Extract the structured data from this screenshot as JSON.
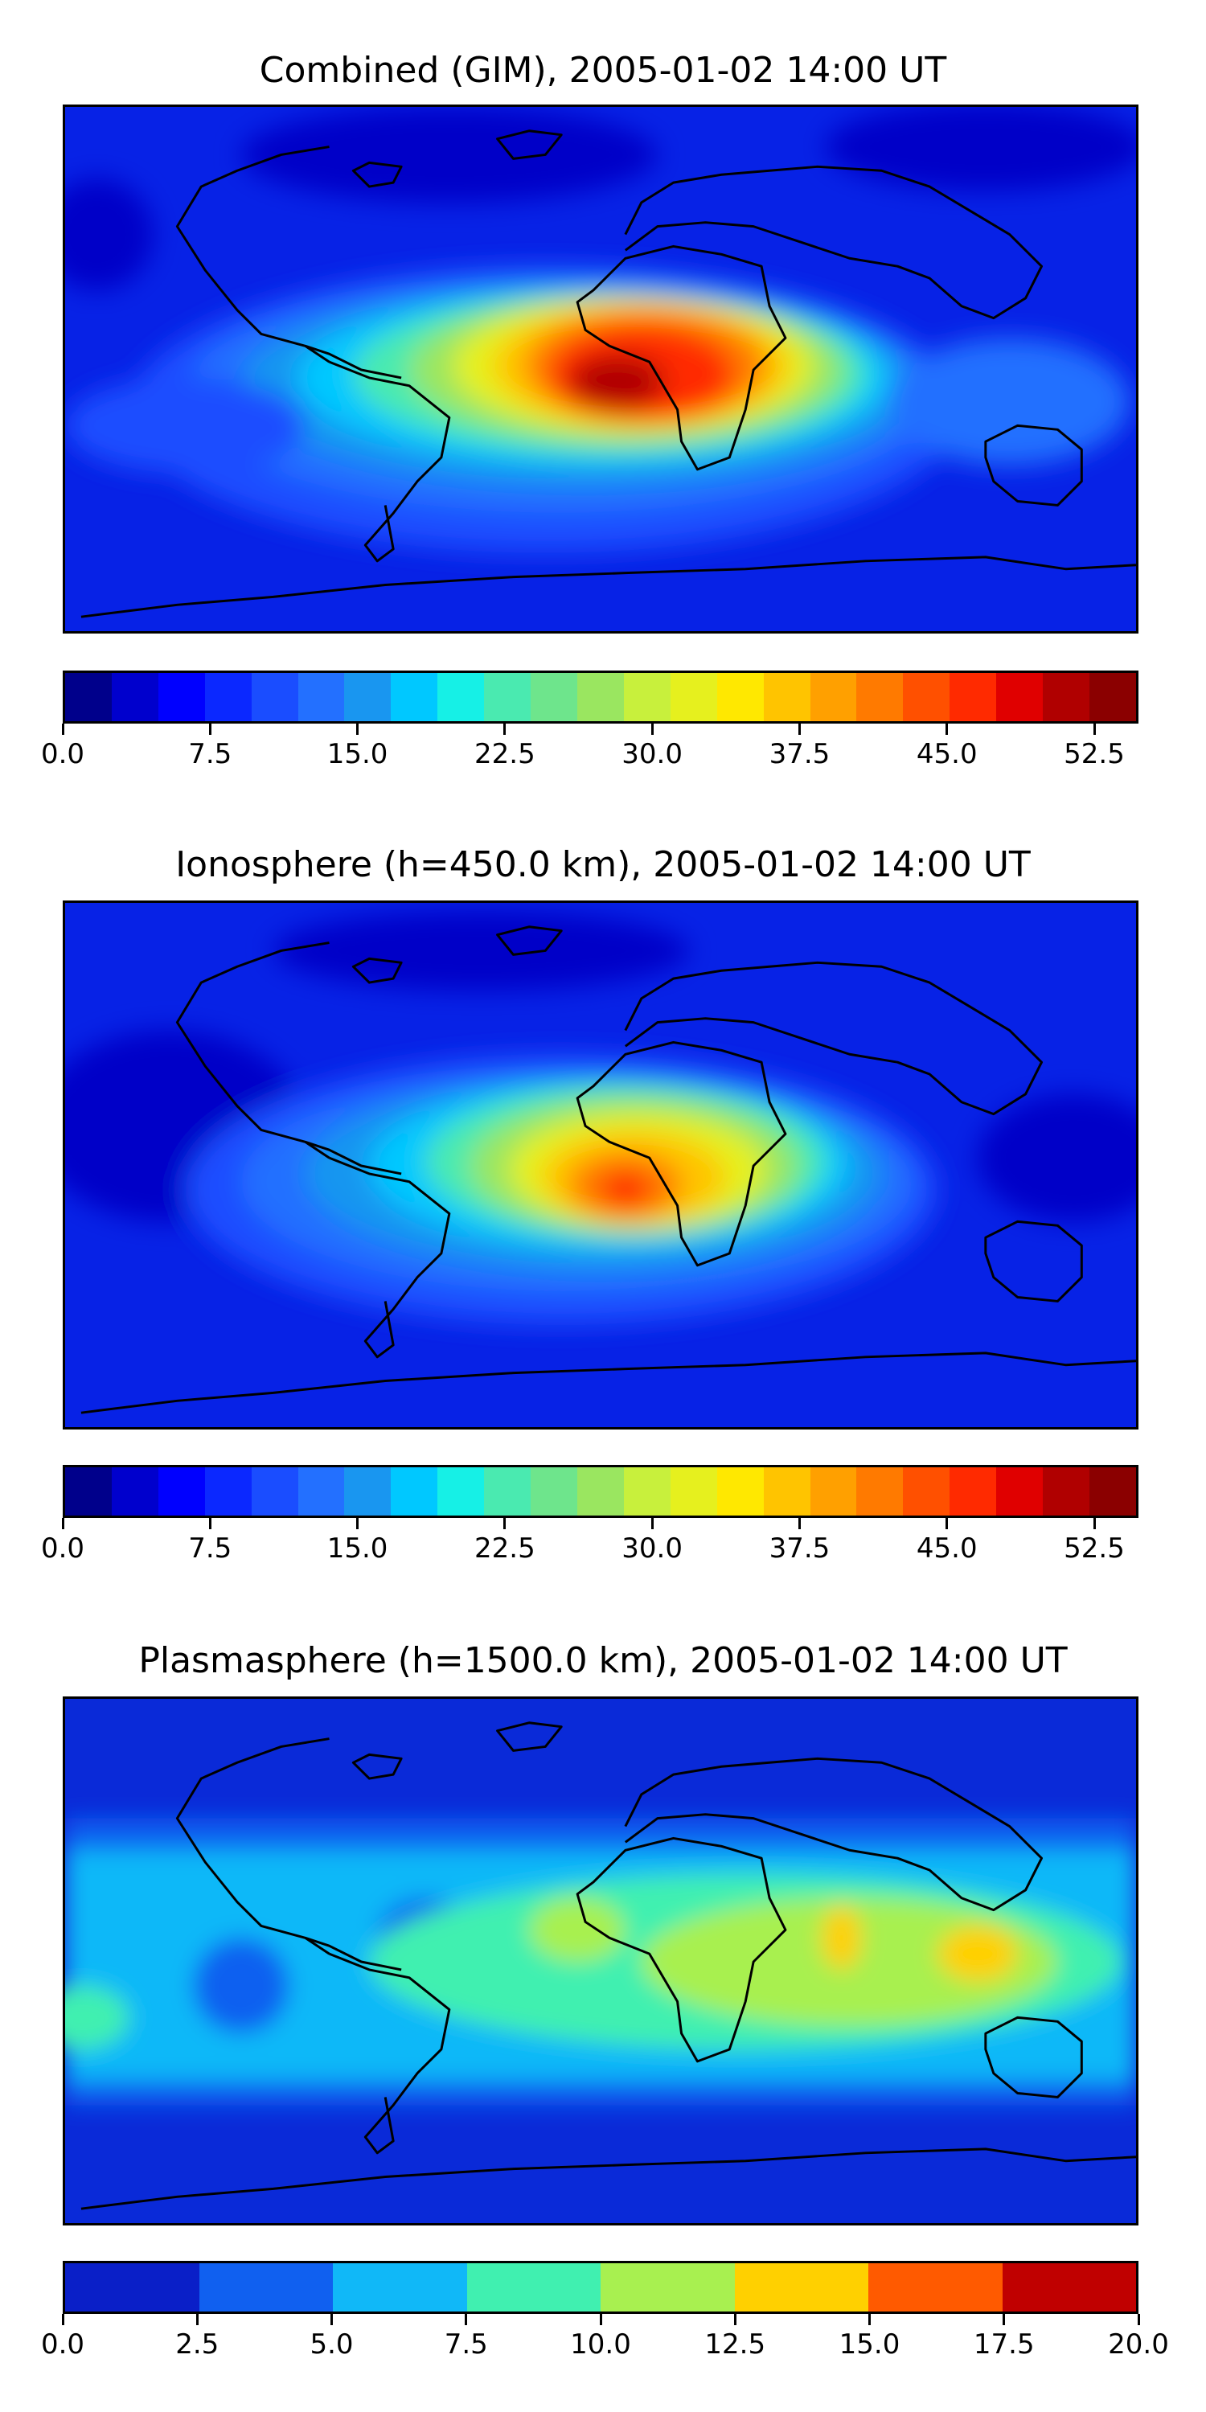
{
  "panels": [
    {
      "title": "Combined (GIM), 2005-01-02 14:00 UT",
      "base_color": "#0722e6",
      "colorbar": {
        "colors": [
          "#00008b",
          "#0000cd",
          "#0000ff",
          "#0b28ff",
          "#1a4dff",
          "#2370ff",
          "#1996f0",
          "#00c8ff",
          "#16f0e6",
          "#4aeab0",
          "#6ee58c",
          "#9ae660",
          "#c8f03c",
          "#e6f01e",
          "#ffe800",
          "#ffc400",
          "#ffa000",
          "#ff7a00",
          "#ff5000",
          "#ff2a00",
          "#e00000",
          "#b00000",
          "#8b0000"
        ],
        "ticks": [
          "0.0",
          "7.5",
          "15.0",
          "22.5",
          "30.0",
          "37.5",
          "45.0",
          "52.5"
        ],
        "tick_values": [
          0,
          7.5,
          15,
          22.5,
          30,
          37.5,
          45,
          52.5
        ],
        "range": [
          0,
          54.75
        ]
      }
    },
    {
      "title": "Ionosphere  (h=450.0 km), 2005-01-02 14:00 UT",
      "base_color": "#0722e6",
      "colorbar": {
        "colors": [
          "#00008b",
          "#0000cd",
          "#0000ff",
          "#0b28ff",
          "#1a4dff",
          "#2370ff",
          "#1996f0",
          "#00c8ff",
          "#16f0e6",
          "#4aeab0",
          "#6ee58c",
          "#9ae660",
          "#c8f03c",
          "#e6f01e",
          "#ffe800",
          "#ffc400",
          "#ffa000",
          "#ff7a00",
          "#ff5000",
          "#ff2a00",
          "#e00000",
          "#b00000",
          "#8b0000"
        ],
        "ticks": [
          "0.0",
          "7.5",
          "15.0",
          "22.5",
          "30.0",
          "37.5",
          "45.0",
          "52.5"
        ],
        "tick_values": [
          0,
          7.5,
          15,
          22.5,
          30,
          37.5,
          45,
          52.5
        ],
        "range": [
          0,
          54.75
        ]
      }
    },
    {
      "title": "Plasmasphere (h=1500.0 km), 2005-01-02 14:00 UT",
      "base_color": "#0a2ad8",
      "colorbar": {
        "colors": [
          "#0a1fc8",
          "#1060f0",
          "#10b8f8",
          "#40f0b0",
          "#a8f050",
          "#ffd000",
          "#ff5a00",
          "#c00000"
        ],
        "ticks": [
          "0.0",
          "2.5",
          "5.0",
          "7.5",
          "10.0",
          "12.5",
          "15.0",
          "17.5",
          "20.0"
        ],
        "tick_values": [
          0,
          2.5,
          5,
          7.5,
          10,
          12.5,
          15,
          17.5,
          20
        ],
        "range": [
          0,
          20
        ]
      }
    }
  ],
  "chart_data": [
    {
      "type": "heatmap",
      "title": "Combined (GIM), 2005-01-02 14:00 UT",
      "colorbar_ticks": [
        0,
        7.5,
        15,
        22.5,
        30,
        37.5,
        45,
        52.5
      ],
      "colorbar_range": [
        0,
        54.75
      ],
      "xlabel": "",
      "ylabel": "",
      "peak_region": "Central Africa",
      "peak_value_approx": 50
    },
    {
      "type": "heatmap",
      "title": "Ionosphere  (h=450.0 km), 2005-01-02 14:00 UT",
      "colorbar_ticks": [
        0,
        7.5,
        15,
        22.5,
        30,
        37.5,
        45,
        52.5
      ],
      "colorbar_range": [
        0,
        54.75
      ],
      "xlabel": "",
      "ylabel": "",
      "peak_region": "Central Africa",
      "peak_value_approx": 42
    },
    {
      "type": "heatmap",
      "title": "Plasmasphere (h=1500.0 km), 2005-01-02 14:00 UT",
      "colorbar_ticks": [
        0,
        2.5,
        5,
        7.5,
        10,
        12.5,
        15,
        17.5,
        20
      ],
      "colorbar_range": [
        0,
        20
      ],
      "xlabel": "",
      "ylabel": "",
      "peak_region": "Southeast Asia / India",
      "peak_value_approx": 13
    }
  ]
}
